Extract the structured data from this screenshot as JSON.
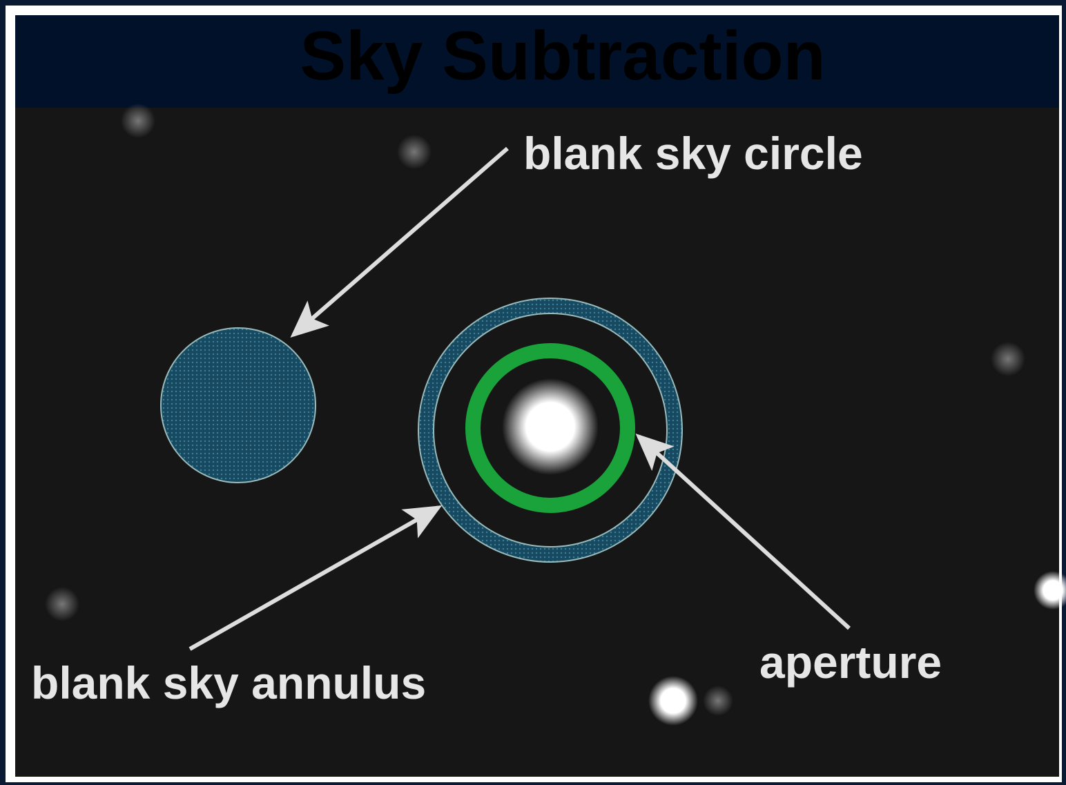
{
  "title": "Sky Subtraction",
  "labels": {
    "circle": "blank sky circle",
    "annulus": "blank sky annulus",
    "aperture": "aperture"
  }
}
